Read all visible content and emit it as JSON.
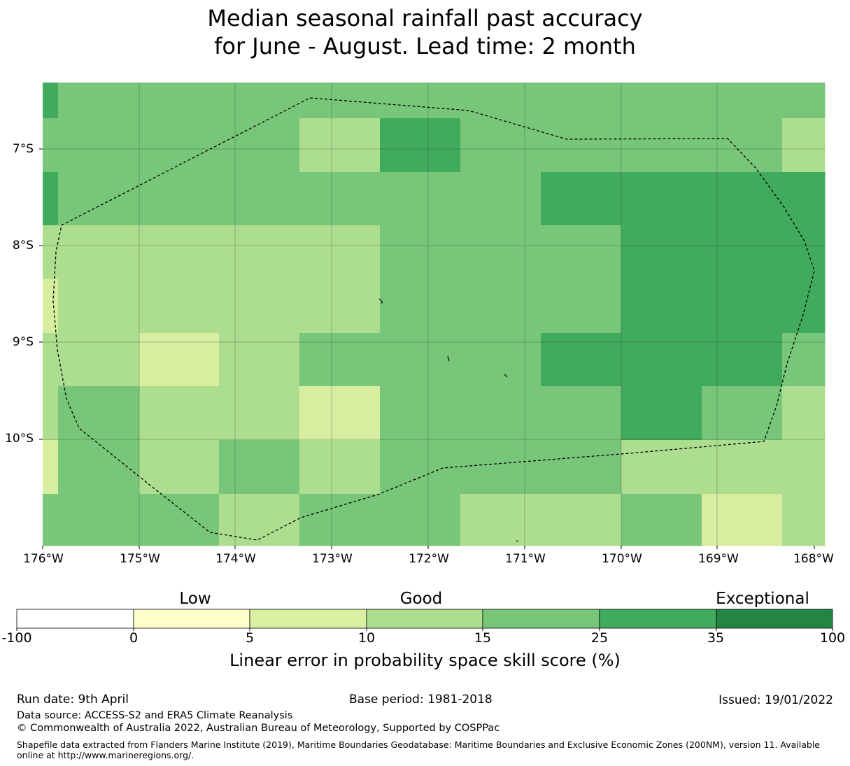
{
  "title": {
    "line1": "Median seasonal rainfall past accuracy",
    "line2": "for June - August. Lead time: 2 month"
  },
  "map": {
    "lon_labels": [
      "176°W",
      "175°W",
      "174°W",
      "173°W",
      "172°W",
      "171°W",
      "170°W",
      "169°W",
      "168°W"
    ],
    "lat_labels": [
      "7°S",
      "8°S",
      "9°S",
      "10°S"
    ],
    "colors": {
      "c1": "#d9eda0",
      "c2": "#addd8e",
      "c3": "#78c679",
      "c4": "#41ab5d",
      "boundary": "#000000",
      "grid": "#333333"
    },
    "boundary_style": "dashed"
  },
  "colorbar": {
    "categories": [
      "Low",
      "Good",
      "Exceptional"
    ],
    "ticks": [
      "-100",
      "0",
      "5",
      "10",
      "15",
      "25",
      "35",
      "100"
    ],
    "colors": [
      "#ffffff",
      "#ffffcc",
      "#d9f0a3",
      "#addd8e",
      "#78c679",
      "#41ab5d",
      "#238443"
    ],
    "label": "Linear error in probability space skill score (%)"
  },
  "footer": {
    "run_date": "Run date: 9th April",
    "base_period": "Base period: 1981-2018",
    "issued": "Issued: 19/01/2022",
    "data_source": "Data source: ACCESS-S2 and ERA5 Climate Reanalysis",
    "copyright": "© Commonwealth of Australia 2022, Australian Bureau of Meteorology, Supported by COSPPac",
    "shapefile": "Shapefile data extracted from Flanders Marine Institute (2019), Maritime Boundaries Geodatabase: Maritime Boundaries and Exclusive Economic Zones (200NM), version 11. Available online at http://www.marineregions.org/."
  }
}
